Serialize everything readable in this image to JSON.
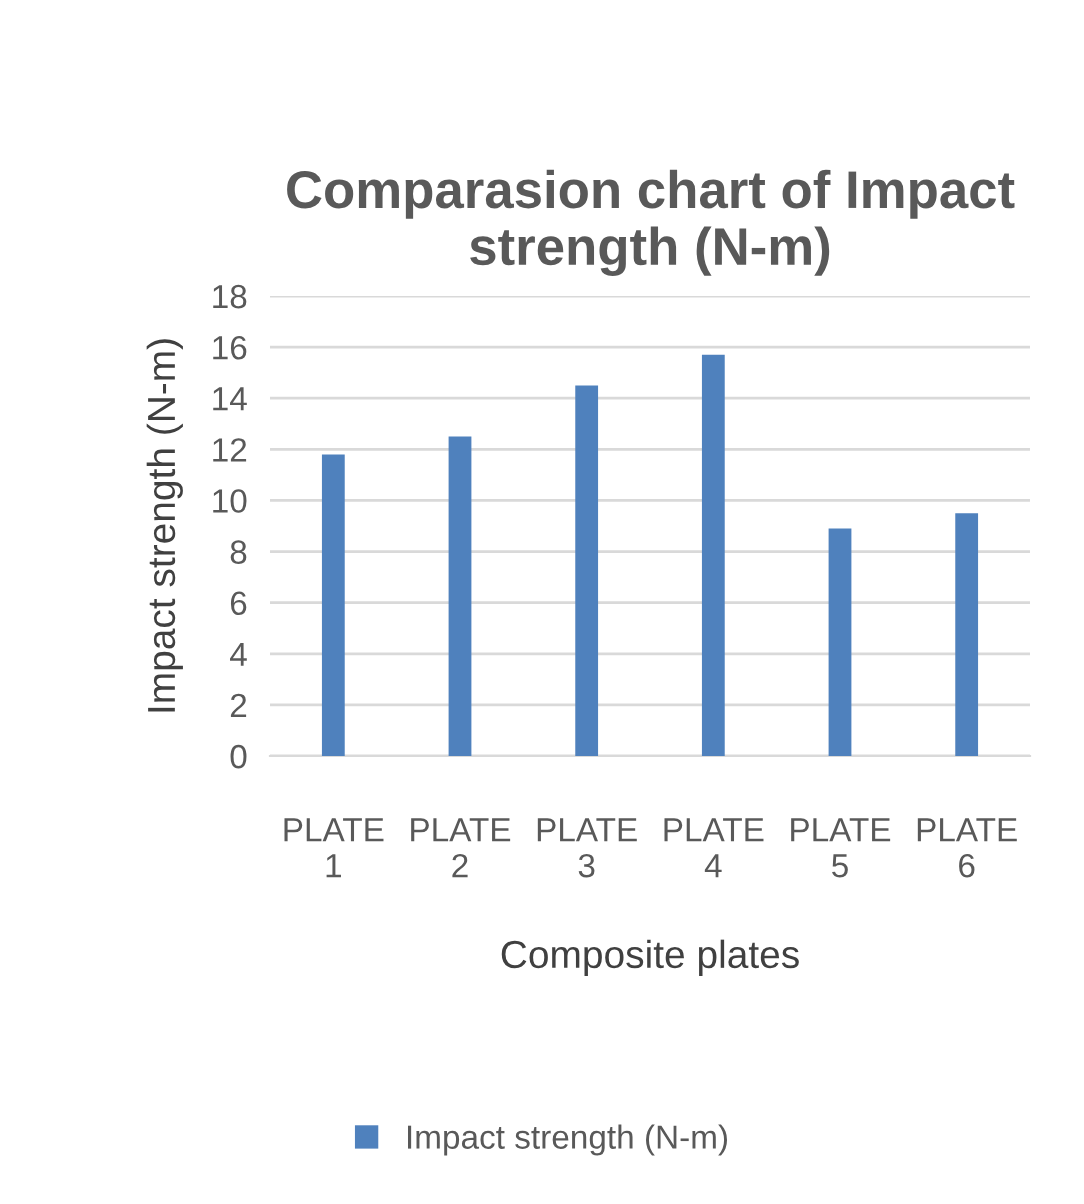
{
  "chart_data": {
    "type": "bar",
    "title": "Comparasion chart of Impact strength (N-m)",
    "xlabel": "Composite plates",
    "ylabel": "Impact strength (N-m)",
    "categories": [
      "PLATE 1",
      "PLATE 2",
      "PLATE 3",
      "PLATE 4",
      "PLATE 5",
      "PLATE 6"
    ],
    "series": [
      {
        "name": "Impact strength (N-m)",
        "color": "#4f81bd",
        "values": [
          11.8,
          12.5,
          14.5,
          15.7,
          8.9,
          9.5
        ]
      }
    ],
    "ylim": [
      0,
      18
    ],
    "yticks": [
      0,
      2,
      4,
      6,
      8,
      10,
      12,
      14,
      16,
      18
    ],
    "grid": "y",
    "legend": "bottom"
  }
}
